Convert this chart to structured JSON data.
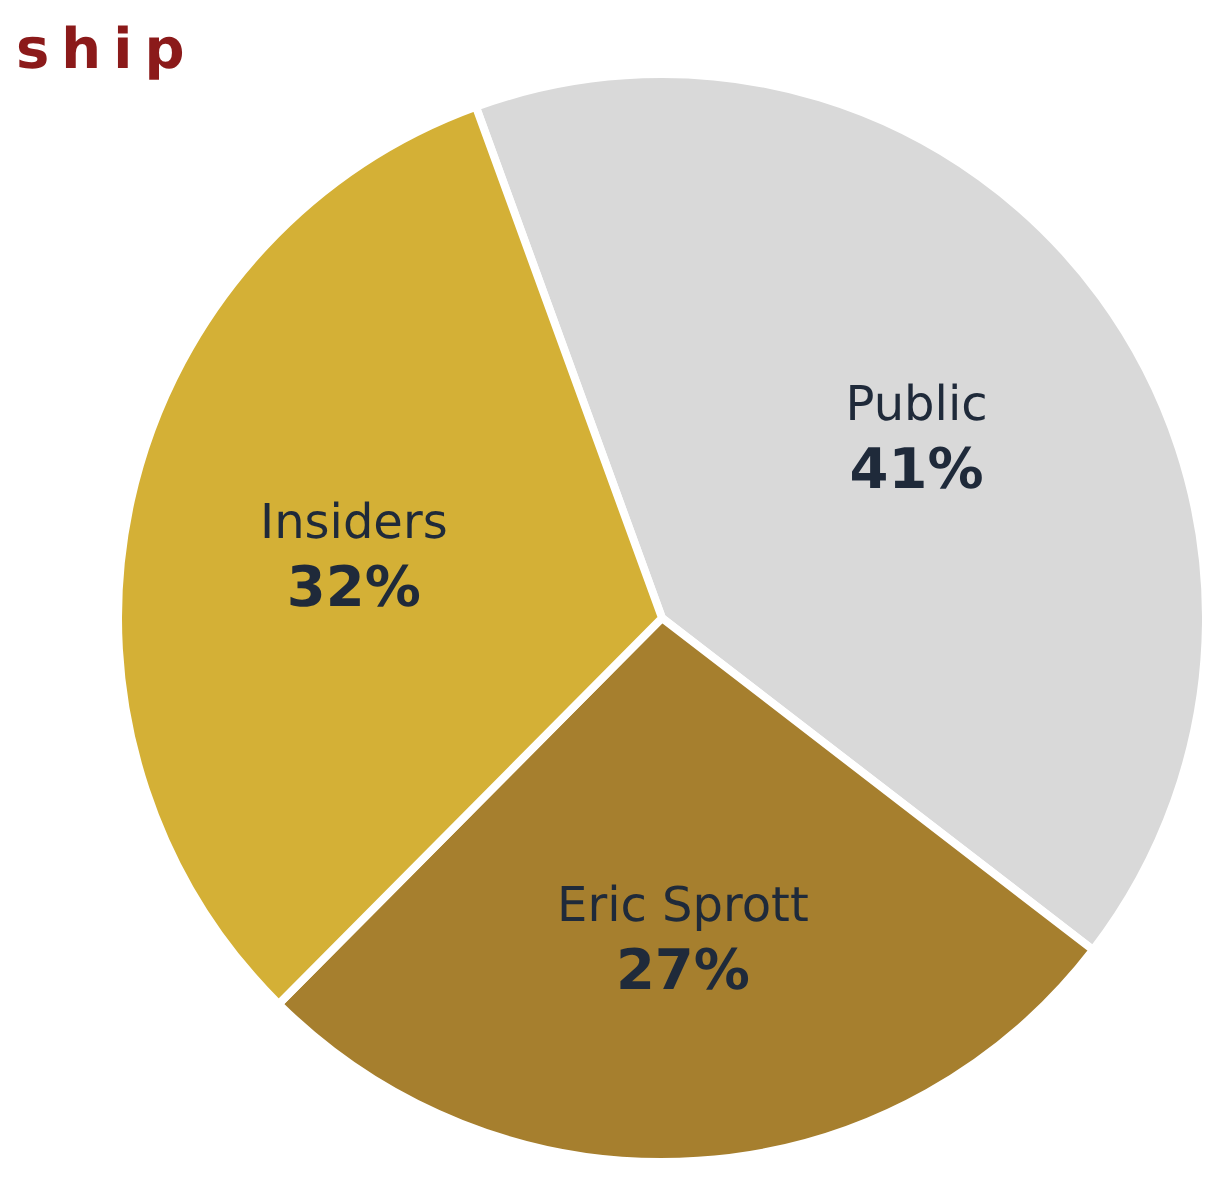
{
  "chart_data": {
    "type": "pie",
    "title": "ship",
    "categories": [
      "Public",
      "Eric Sprott",
      "Insiders"
    ],
    "values": [
      41,
      27,
      32
    ],
    "value_labels": [
      "41%",
      "27%",
      "32%"
    ],
    "colors": [
      "#d9d9d9",
      "#a67f2e",
      "#d4b036"
    ]
  }
}
